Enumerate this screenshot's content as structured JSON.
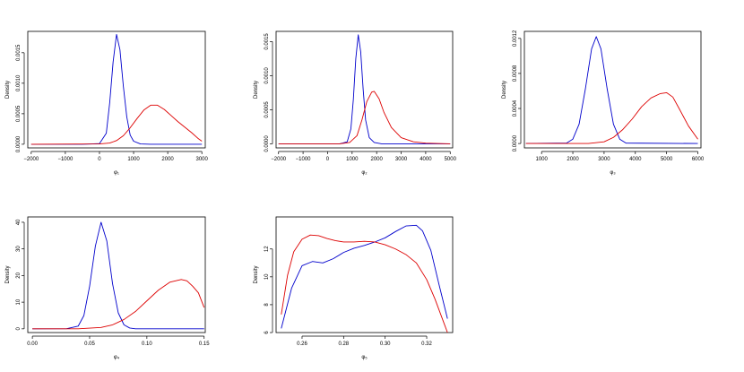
{
  "chart_data": [
    {
      "type": "line",
      "xlabel": "φ₁",
      "ylabel": "Density",
      "xlim": [
        -2100,
        3100
      ],
      "ylim": [
        -6e-05,
        0.00185
      ],
      "xticks": [
        -2000,
        -1000,
        0,
        1000,
        2000,
        3000
      ],
      "xtick_labels": [
        "−2000",
        "−1000",
        "0",
        "1000",
        "2000",
        "3000"
      ],
      "yticks": [
        0,
        0.0005,
        0.001,
        0.0015
      ],
      "ytick_labels": [
        "0.0000",
        "0.0005",
        "0.0010",
        "0.0015"
      ],
      "series": [
        {
          "color": "#0000cc",
          "x": [
            -2000,
            -500,
            0,
            200,
            300,
            400,
            500,
            600,
            700,
            800,
            900,
            1000,
            1200,
            1500,
            3000
          ],
          "y": [
            0,
            0,
            1e-05,
            0.00018,
            0.00068,
            0.00135,
            0.0018,
            0.00155,
            0.00095,
            0.00045,
            0.00015,
            5e-05,
            5e-06,
            0,
            0
          ]
        },
        {
          "color": "#dd0000",
          "x": [
            -2000,
            0,
            300,
            500,
            700,
            900,
            1100,
            1300,
            1500,
            1700,
            1900,
            2100,
            2300,
            2500,
            2700,
            2900,
            3000
          ],
          "y": [
            0,
            5e-06,
            2e-05,
            6e-05,
            0.00014,
            0.00027,
            0.00042,
            0.00056,
            0.00064,
            0.00064,
            0.00057,
            0.00047,
            0.00037,
            0.00028,
            0.00019,
            9e-05,
            5e-05
          ]
        }
      ]
    },
    {
      "type": "line",
      "xlabel": "φ₂",
      "ylabel": "Density",
      "xlim": [
        -2100,
        5100
      ],
      "ylim": [
        -6e-05,
        0.00165
      ],
      "xticks": [
        -2000,
        -1000,
        0,
        1000,
        2000,
        3000,
        4000,
        5000
      ],
      "xtick_labels": [
        "−2000",
        "−1000",
        "0",
        "1000",
        "2000",
        "3000",
        "4000",
        "5000"
      ],
      "yticks": [
        0,
        0.0005,
        0.001,
        0.0015
      ],
      "ytick_labels": [
        "0.0000",
        "0.0005",
        "0.0010",
        "0.0015"
      ],
      "series": [
        {
          "color": "#0000cc",
          "x": [
            -2000,
            500,
            800,
            950,
            1050,
            1150,
            1250,
            1350,
            1450,
            1550,
            1700,
            1900,
            2200,
            5000
          ],
          "y": [
            0,
            0,
            3e-05,
            0.00022,
            0.00065,
            0.00125,
            0.0016,
            0.00135,
            0.0008,
            0.00035,
            9e-05,
            2e-05,
            0,
            0
          ]
        },
        {
          "color": "#dd0000",
          "x": [
            -2000,
            500,
            900,
            1200,
            1400,
            1600,
            1800,
            1900,
            2100,
            2300,
            2600,
            3000,
            3500,
            4000,
            5000
          ],
          "y": [
            0,
            0,
            2e-05,
            0.00012,
            0.00035,
            0.00062,
            0.00076,
            0.00077,
            0.00066,
            0.00046,
            0.00024,
            9e-05,
            3e-05,
            1e-05,
            0
          ]
        }
      ]
    },
    {
      "type": "line",
      "xlabel": "φ₃",
      "ylabel": "Density",
      "xlim": [
        450,
        6100
      ],
      "ylim": [
        -5e-05,
        0.00128
      ],
      "xticks": [
        1000,
        2000,
        3000,
        4000,
        5000,
        6000
      ],
      "xtick_labels": [
        "1000",
        "2000",
        "3000",
        "4000",
        "5000",
        "6000"
      ],
      "yticks": [
        0,
        0.0004,
        0.0008,
        0.0012
      ],
      "ytick_labels": [
        "0.0000",
        "0.0004",
        "0.0008",
        "0.0012"
      ],
      "series": [
        {
          "color": "#0000cc",
          "x": [
            500,
            1800,
            2000,
            2200,
            2400,
            2600,
            2750,
            2900,
            3100,
            3300,
            3500,
            3700,
            6000
          ],
          "y": [
            0,
            5e-06,
            5e-05,
            0.00022,
            0.00062,
            0.00108,
            0.00122,
            0.00108,
            0.00062,
            0.00022,
            5e-05,
            5e-06,
            0
          ]
        },
        {
          "color": "#dd0000",
          "x": [
            500,
            2500,
            3000,
            3300,
            3600,
            3900,
            4200,
            4500,
            4800,
            5000,
            5200,
            5400,
            5700,
            6000
          ],
          "y": [
            0,
            0,
            2e-05,
            7e-05,
            0.00016,
            0.00028,
            0.00042,
            0.00052,
            0.00057,
            0.00058,
            0.00053,
            0.0004,
            0.0002,
            5e-05
          ]
        }
      ]
    },
    {
      "type": "line",
      "xlabel": "φ₄",
      "ylabel": "Density",
      "xlim": [
        -0.004,
        0.151
      ],
      "ylim": [
        -1.4,
        42
      ],
      "xticks": [
        0,
        0.05,
        0.1,
        0.15
      ],
      "xtick_labels": [
        "0.00",
        "0.05",
        "0.10",
        "0.15"
      ],
      "yticks": [
        0,
        10,
        20,
        30,
        40
      ],
      "ytick_labels": [
        "0",
        "10",
        "20",
        "30",
        "40"
      ],
      "series": [
        {
          "color": "#0000cc",
          "x": [
            0,
            0.03,
            0.04,
            0.045,
            0.05,
            0.055,
            0.06,
            0.065,
            0.07,
            0.075,
            0.08,
            0.085,
            0.09,
            0.15
          ],
          "y": [
            0,
            0.05,
            1,
            5,
            16,
            31,
            40,
            33,
            17,
            6,
            1.5,
            0.3,
            0,
            0
          ]
        },
        {
          "color": "#dd0000",
          "x": [
            0,
            0.04,
            0.06,
            0.07,
            0.08,
            0.09,
            0.1,
            0.11,
            0.12,
            0.13,
            0.135,
            0.14,
            0.145,
            0.15
          ],
          "y": [
            0,
            0,
            0.5,
            1.5,
            3.5,
            6.5,
            10.5,
            14.5,
            17.5,
            18.5,
            18,
            16,
            13.5,
            8
          ]
        }
      ]
    },
    {
      "type": "line",
      "xlabel": "φ₅",
      "ylabel": "Density",
      "xlim": [
        0.2475,
        0.3325
      ],
      "ylim": [
        6,
        14.3
      ],
      "xticks": [
        0.26,
        0.28,
        0.3,
        0.32
      ],
      "xtick_labels": [
        "0.26",
        "0.28",
        "0.30",
        "0.32"
      ],
      "yticks": [
        6,
        8,
        10,
        12
      ],
      "ytick_labels": [
        "6",
        "8",
        "10",
        "12"
      ],
      "series": [
        {
          "color": "#0000cc",
          "x": [
            0.25,
            0.255,
            0.26,
            0.265,
            0.27,
            0.275,
            0.28,
            0.285,
            0.29,
            0.295,
            0.3,
            0.305,
            0.31,
            0.315,
            0.318,
            0.322,
            0.326,
            0.33
          ],
          "y": [
            6.3,
            9.2,
            10.8,
            11.1,
            11,
            11.3,
            11.75,
            12.05,
            12.25,
            12.5,
            12.8,
            13.25,
            13.65,
            13.7,
            13.3,
            11.9,
            9.4,
            7
          ]
        },
        {
          "color": "#dd0000",
          "x": [
            0.25,
            0.253,
            0.256,
            0.26,
            0.264,
            0.268,
            0.272,
            0.276,
            0.28,
            0.285,
            0.29,
            0.295,
            0.3,
            0.305,
            0.31,
            0.315,
            0.32,
            0.324,
            0.328,
            0.33
          ],
          "y": [
            7.3,
            10.1,
            11.8,
            12.7,
            13,
            12.95,
            12.75,
            12.6,
            12.5,
            12.5,
            12.55,
            12.5,
            12.3,
            12,
            11.6,
            11,
            9.8,
            8.4,
            6.8,
            6
          ]
        }
      ]
    }
  ]
}
